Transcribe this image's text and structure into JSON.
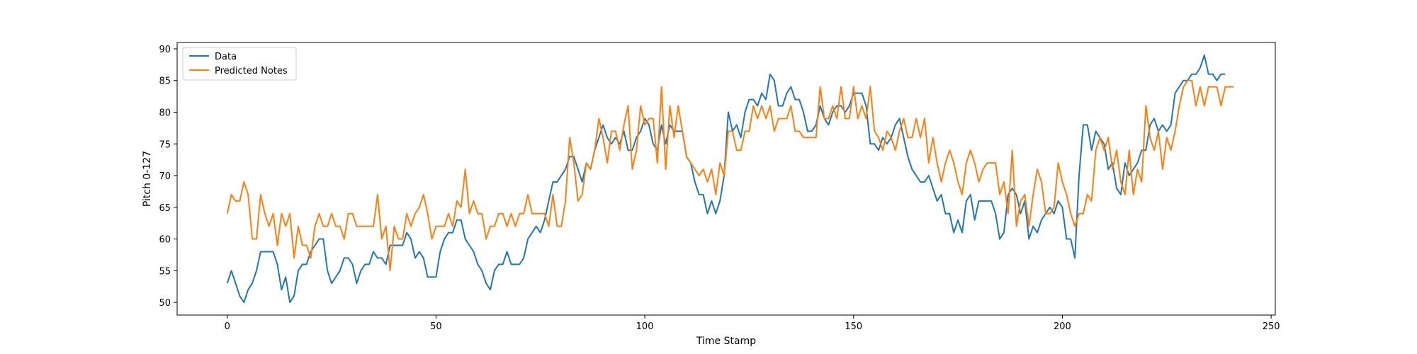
{
  "chart_data": {
    "type": "line",
    "title": "",
    "xlabel": "Time Stamp",
    "ylabel": "Pitch 0-127",
    "xlim": [
      -12,
      251
    ],
    "ylim": [
      48,
      91
    ],
    "xticks": [
      0,
      50,
      100,
      150,
      200,
      250
    ],
    "yticks": [
      50,
      55,
      60,
      65,
      70,
      75,
      80,
      85,
      90
    ],
    "grid": false,
    "legend_position": "upper-left",
    "series": [
      {
        "name": "Data",
        "color": "#1f77b4",
        "values": [
          53,
          55,
          53,
          51,
          50,
          52,
          53,
          55,
          58,
          58,
          58,
          58,
          56,
          52,
          54,
          50,
          51,
          55,
          56,
          56,
          58,
          59,
          60,
          60,
          55,
          53,
          54,
          55,
          57,
          57,
          56,
          53,
          55,
          56,
          56,
          58,
          57,
          57,
          56,
          59,
          59,
          59,
          59,
          61,
          60,
          57,
          58,
          57,
          54,
          54,
          54,
          58,
          60,
          61,
          61,
          63,
          63,
          60,
          59,
          58,
          56,
          55,
          53,
          52,
          55,
          56,
          56,
          58,
          56,
          56,
          56,
          57,
          60,
          61,
          62,
          61,
          63,
          66,
          69,
          69,
          70,
          71,
          73,
          73,
          71,
          69,
          72,
          71,
          74,
          76,
          78,
          76,
          75,
          76,
          75,
          77,
          74,
          74,
          76,
          77,
          79,
          78,
          75,
          74,
          78,
          75,
          78,
          77,
          77,
          77,
          73,
          72,
          69,
          67,
          67,
          64,
          66,
          64,
          66,
          70,
          80,
          77,
          78,
          76,
          80,
          82,
          82,
          81,
          83,
          82,
          86,
          85,
          81,
          81,
          83,
          84,
          82,
          82,
          80,
          77,
          77,
          78,
          81,
          79,
          78,
          80,
          81,
          81,
          80,
          81,
          83,
          83,
          83,
          81,
          75,
          75,
          74,
          76,
          75,
          76,
          78,
          79,
          76,
          73,
          71,
          70,
          69,
          69,
          70,
          68,
          66,
          67,
          64,
          64,
          61,
          63,
          61,
          66,
          67,
          63,
          66,
          66,
          66,
          66,
          64,
          60,
          61,
          67,
          68,
          67,
          64,
          66,
          60,
          62,
          61,
          63,
          64,
          65,
          64,
          66,
          65,
          60,
          60,
          57,
          70,
          78,
          78,
          74,
          77,
          76,
          75,
          71,
          72,
          68,
          67,
          72,
          70,
          71,
          72,
          74,
          74,
          78,
          79,
          77,
          78,
          77,
          78,
          83,
          84,
          85,
          85,
          86,
          86,
          87,
          89,
          86,
          86,
          85,
          86,
          86
        ]
      },
      {
        "name": "Predicted Notes",
        "color": "#ff7f0e",
        "values": [
          64,
          67,
          66,
          66,
          69,
          67,
          60,
          60,
          67,
          64,
          62,
          64,
          59,
          64,
          62,
          64,
          57,
          62,
          59,
          59,
          57,
          62,
          64,
          62,
          62,
          64,
          62,
          62,
          60,
          64,
          64,
          62,
          62,
          62,
          62,
          62,
          67,
          60,
          62,
          55,
          62,
          60,
          60,
          64,
          62,
          64,
          65,
          67,
          64,
          60,
          62,
          62,
          62,
          64,
          62,
          66,
          65,
          71,
          64,
          66,
          64,
          64,
          60,
          62,
          62,
          64,
          64,
          62,
          64,
          62,
          64,
          64,
          67,
          64,
          64,
          64,
          64,
          62,
          67,
          62,
          62,
          66,
          76,
          72,
          66,
          67,
          72,
          71,
          74,
          79,
          76,
          72,
          77,
          77,
          74,
          78,
          81,
          71,
          74,
          81,
          78,
          79,
          79,
          72,
          84,
          71,
          81,
          76,
          81,
          77,
          73,
          72,
          71,
          70,
          71,
          69,
          71,
          67,
          72,
          70,
          77,
          77,
          74,
          74,
          77,
          77,
          81,
          79,
          81,
          79,
          81,
          77,
          79,
          79,
          79,
          81,
          77,
          77,
          76,
          76,
          76,
          76,
          84,
          79,
          79,
          81,
          79,
          84,
          79,
          79,
          84,
          79,
          81,
          79,
          84,
          77,
          76,
          74,
          77,
          76,
          74,
          77,
          79,
          76,
          76,
          79,
          76,
          79,
          72,
          76,
          72,
          69,
          72,
          74,
          72,
          69,
          67,
          72,
          74,
          72,
          69,
          71,
          72,
          72,
          72,
          67,
          69,
          64,
          74,
          62,
          66,
          67,
          62,
          67,
          71,
          69,
          64,
          64,
          65,
          72,
          69,
          67,
          64,
          62,
          64,
          64,
          67,
          66,
          74,
          76,
          74,
          76,
          71,
          74,
          69,
          67,
          74,
          67,
          71,
          69,
          81,
          76,
          74,
          77,
          71,
          76,
          74,
          77,
          81,
          84,
          85,
          85,
          81,
          84,
          81,
          84,
          84,
          84,
          81,
          84,
          84,
          84
        ]
      }
    ]
  }
}
